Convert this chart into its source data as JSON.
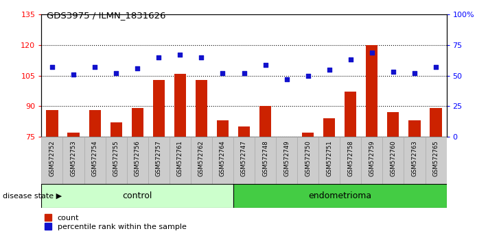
{
  "title": "GDS3975 / ILMN_1831626",
  "samples": [
    "GSM572752",
    "GSM572753",
    "GSM572754",
    "GSM572755",
    "GSM572756",
    "GSM572757",
    "GSM572761",
    "GSM572762",
    "GSM572764",
    "GSM572747",
    "GSM572748",
    "GSM572749",
    "GSM572750",
    "GSM572751",
    "GSM572758",
    "GSM572759",
    "GSM572760",
    "GSM572763",
    "GSM572765"
  ],
  "bar_values": [
    88,
    77,
    88,
    82,
    89,
    103,
    106,
    103,
    83,
    80,
    90,
    75,
    77,
    84,
    97,
    120,
    87,
    83,
    89
  ],
  "dot_values": [
    57,
    51,
    57,
    52,
    56,
    65,
    67,
    65,
    52,
    52,
    59,
    47,
    50,
    55,
    63,
    69,
    53,
    52,
    57
  ],
  "bar_color": "#cc2200",
  "dot_color": "#1111cc",
  "ylim_left": [
    75,
    135
  ],
  "ylim_right": [
    0,
    100
  ],
  "yticks_left": [
    75,
    90,
    105,
    120,
    135
  ],
  "yticks_right": [
    0,
    25,
    50,
    75,
    100
  ],
  "ytick_labels_right": [
    "0",
    "25",
    "50",
    "75",
    "100%"
  ],
  "control_count": 9,
  "endometrioma_count": 10,
  "group_label_control": "control",
  "group_label_endo": "endometrioma",
  "disease_state_label": "disease state",
  "legend_bar": "count",
  "legend_dot": "percentile rank within the sample",
  "bar_width": 0.55,
  "ctrl_color": "#ccffcc",
  "endo_color": "#44cc44",
  "gray_box_color": "#cccccc",
  "gray_box_edge": "#aaaaaa"
}
